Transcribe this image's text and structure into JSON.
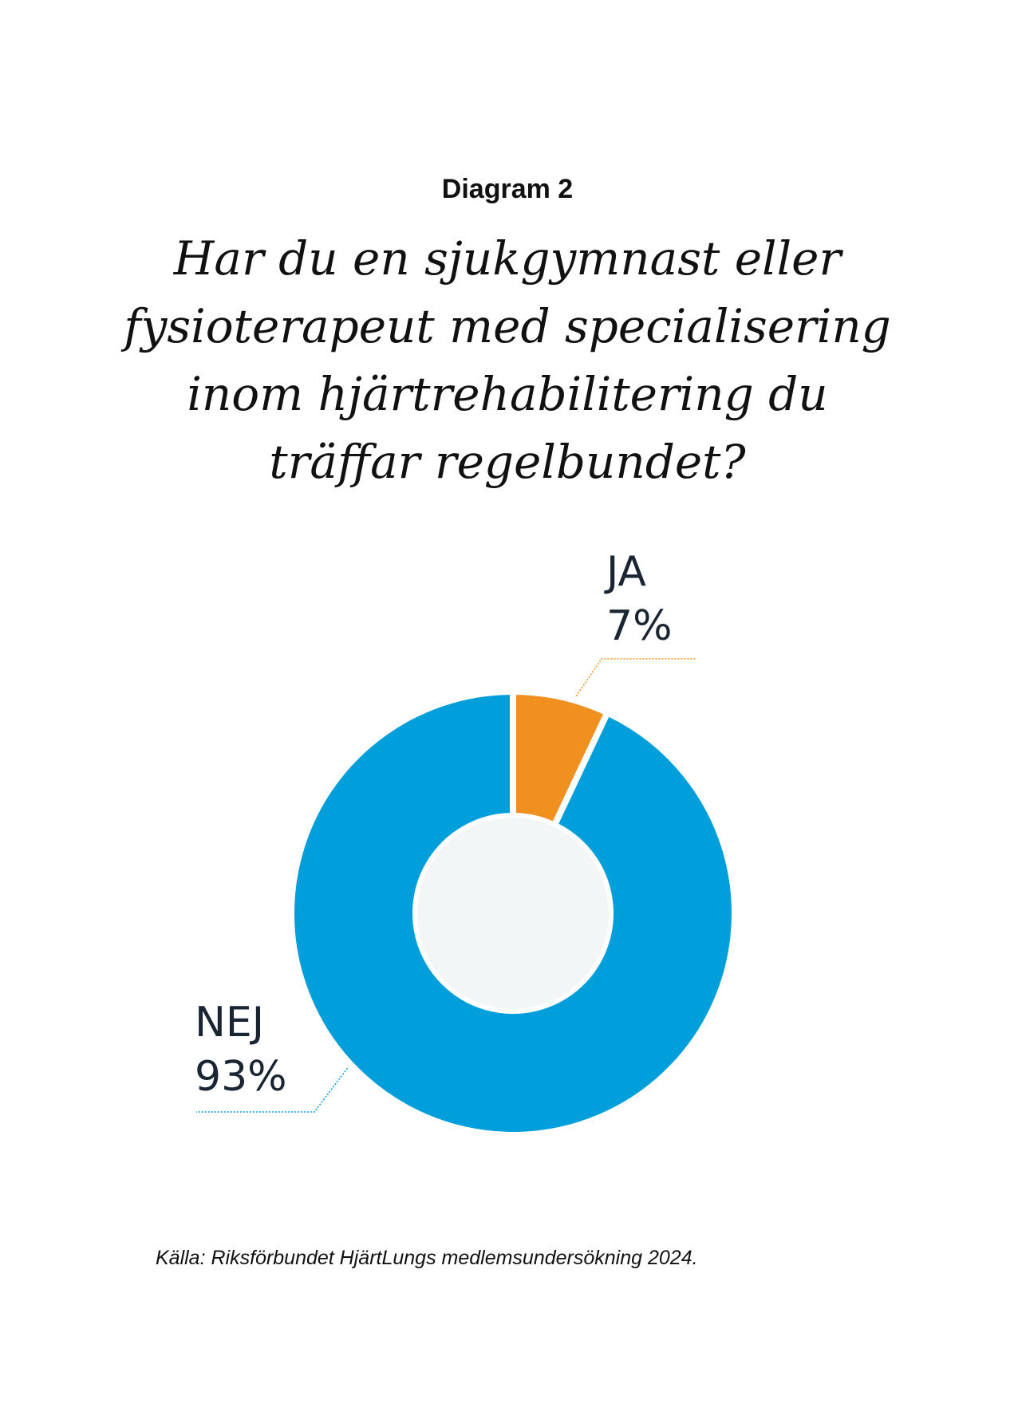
{
  "header": {
    "kicker": "Diagram 2",
    "title_lines": [
      "Har du en sjukgymnast eller",
      "fysioterapeut med specialisering",
      "inom hjärtrehabilitering du",
      "träffar regelbundet?"
    ]
  },
  "chart_data": {
    "type": "pie",
    "variant": "donut",
    "title": "Har du en sjukgymnast eller fysioterapeut med specialisering inom hjärtrehabilitering du träffar regelbundet?",
    "slices": [
      {
        "label": "JA",
        "value": 7,
        "value_label": "7%",
        "color": "#f0901e"
      },
      {
        "label": "NEJ",
        "value": 93,
        "value_label": "93%",
        "color": "#009edb"
      }
    ],
    "center_color": "#f2f6f7"
  },
  "footer": {
    "source": "Källa: Riksförbundet HjärtLungs medlemsundersökning 2024."
  }
}
